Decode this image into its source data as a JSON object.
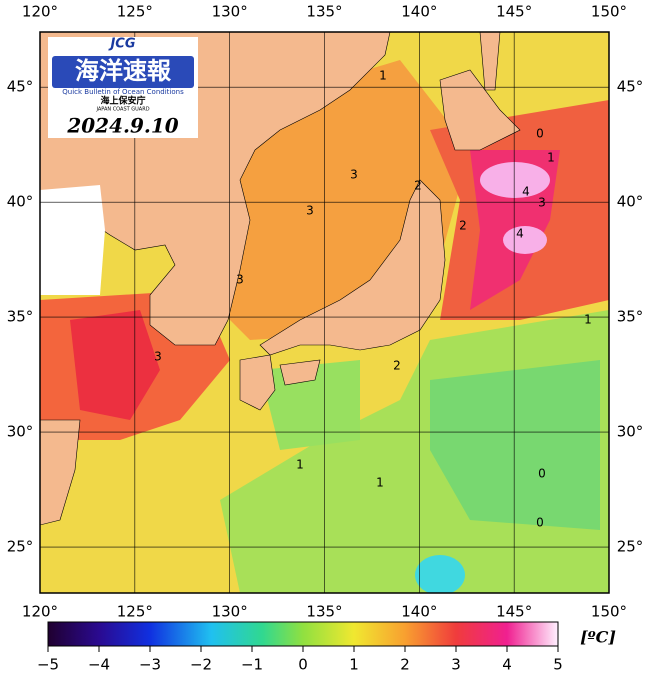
{
  "map": {
    "lon_ticks": [
      {
        "value": 120,
        "label": "120°"
      },
      {
        "value": 125,
        "label": "125°"
      },
      {
        "value": 130,
        "label": "130°"
      },
      {
        "value": 135,
        "label": "135°"
      },
      {
        "value": 140,
        "label": "140°"
      },
      {
        "value": 145,
        "label": "145°"
      },
      {
        "value": 150,
        "label": "150°"
      }
    ],
    "lat_ticks": [
      {
        "value": 25,
        "label": "25°"
      },
      {
        "value": 30,
        "label": "30°"
      },
      {
        "value": 35,
        "label": "35°"
      },
      {
        "value": 40,
        "label": "40°"
      },
      {
        "value": 45,
        "label": "45°"
      }
    ],
    "lon_range": [
      120,
      150
    ],
    "lat_range": [
      23,
      47.4
    ],
    "logo": {
      "badge": "JCG",
      "title": "海洋速報",
      "subtitle": "Quick Bulletin of Ocean Conditions",
      "agency": "海上保安庁",
      "agency_en": "JAPAN COAST GUARD"
    },
    "date": "2024.9.10",
    "contour_labels": [
      {
        "value": 1,
        "label": "1"
      },
      {
        "value": 0,
        "label": "0"
      },
      {
        "value": 1,
        "label": "1"
      },
      {
        "value": 3,
        "label": "3"
      },
      {
        "value": 3,
        "label": "3"
      },
      {
        "value": 2,
        "label": "2"
      },
      {
        "value": 4,
        "label": "4"
      },
      {
        "value": 3,
        "label": "3"
      },
      {
        "value": 2,
        "label": "2"
      },
      {
        "value": 4,
        "label": "4"
      },
      {
        "value": 3,
        "label": "3"
      },
      {
        "value": 3,
        "label": "3"
      },
      {
        "value": 2,
        "label": "2"
      },
      {
        "value": 1,
        "label": "1"
      },
      {
        "value": 1,
        "label": "1"
      },
      {
        "value": 1,
        "label": "1"
      },
      {
        "value": 0,
        "label": "0"
      },
      {
        "value": 0,
        "label": "0"
      }
    ]
  },
  "colorbar": {
    "range": [
      -5,
      5
    ],
    "ticks": [
      {
        "value": -5,
        "label": "−5"
      },
      {
        "value": -4,
        "label": "−4"
      },
      {
        "value": -3,
        "label": "−3"
      },
      {
        "value": -2,
        "label": "−2"
      },
      {
        "value": -1,
        "label": "−1"
      },
      {
        "value": 0,
        "label": "0"
      },
      {
        "value": 1,
        "label": "1"
      },
      {
        "value": 2,
        "label": "2"
      },
      {
        "value": 3,
        "label": "3"
      },
      {
        "value": 4,
        "label": "4"
      },
      {
        "value": 5,
        "label": "5"
      }
    ],
    "unit": "[ºC]"
  }
}
